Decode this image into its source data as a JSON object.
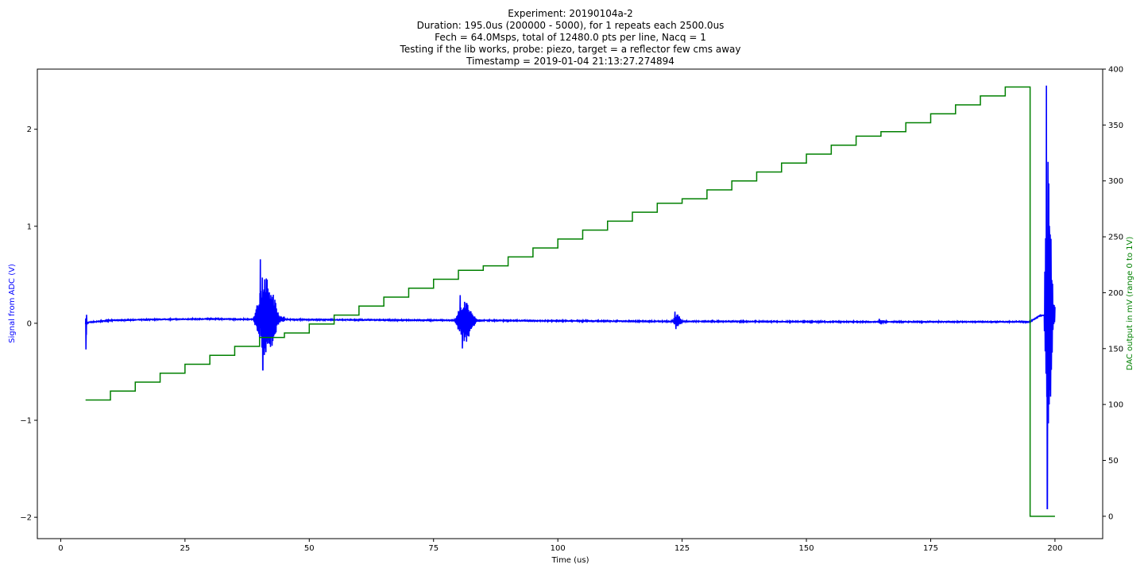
{
  "chart_data": {
    "type": "line",
    "title_lines": [
      "Experiment: 20190104a-2",
      "Duration: 195.0us (200000 - 5000), for 1 repeats each 2500.0us",
      "Fech = 64.0Msps, total of 12480.0 pts per line, Nacq = 1",
      "Testing if the lib works, probe: piezo, target = a reflector few cms away",
      "Timestamp = 2019-01-04 21:13:27.274894"
    ],
    "xlabel": "Time (us)",
    "ylabel_left": "Signal from ADC (V)",
    "ylabel_right": "DAC output in mV (range 0 to 1V)",
    "xlim": [
      -4.7,
      209.6
    ],
    "ylim_left": [
      -2.22,
      2.62
    ],
    "ylim_right": [
      -20,
      400
    ],
    "x_ticks": [
      0,
      25,
      50,
      75,
      100,
      125,
      150,
      175,
      200
    ],
    "x_tick_labels": [
      "0",
      "25",
      "50",
      "75",
      "100",
      "125",
      "150",
      "175",
      "200"
    ],
    "y_left_ticks": [
      -2,
      -1,
      0,
      1,
      2
    ],
    "y_left_tick_labels": [
      "−2",
      "−1",
      "0",
      "1",
      "2"
    ],
    "y_right_ticks": [
      0,
      50,
      100,
      150,
      200,
      250,
      300,
      350,
      400
    ],
    "y_right_tick_labels": [
      "0",
      "50",
      "100",
      "150",
      "200",
      "250",
      "300",
      "350",
      "400"
    ],
    "grid": false,
    "colors": {
      "signal": "#0000ff",
      "dac": "#008000",
      "left_label": "#0000ff",
      "right_label": "#008000"
    },
    "series": [
      {
        "axis": "right",
        "color": "#008000",
        "step_x": [
          5,
          10,
          15,
          20,
          25,
          30,
          35,
          40,
          45,
          50,
          55,
          60,
          65,
          70,
          75,
          80,
          85,
          90,
          95,
          100,
          105,
          110,
          115,
          120,
          125,
          130,
          135,
          140,
          145,
          150,
          155,
          160,
          165,
          170,
          175,
          180,
          185,
          190,
          195,
          200
        ],
        "step_y": [
          104,
          112,
          120,
          128,
          136,
          144,
          152,
          160,
          164,
          172,
          180,
          188,
          196,
          204,
          212,
          220,
          224,
          232,
          240,
          248,
          256,
          264,
          272,
          280,
          284,
          292,
          300,
          308,
          316,
          324,
          332,
          340,
          344,
          352,
          360,
          368,
          376,
          384,
          0,
          0
        ]
      },
      {
        "axis": "left",
        "color": "#0000ff",
        "baseline": [
          [
            5,
            0.0
          ],
          [
            5.8,
            0.01
          ],
          [
            10,
            0.03
          ],
          [
            20,
            0.04
          ],
          [
            30,
            0.045
          ],
          [
            40,
            0.04
          ],
          [
            60,
            0.035
          ],
          [
            80,
            0.03
          ],
          [
            100,
            0.025
          ],
          [
            120,
            0.02
          ],
          [
            140,
            0.018
          ],
          [
            160,
            0.015
          ],
          [
            180,
            0.015
          ],
          [
            195,
            0.015
          ],
          [
            197,
            0.08
          ],
          [
            198,
            0.08
          ]
        ],
        "bursts": [
          {
            "x0": 5.0,
            "x1": 5.3,
            "vmax": 0.41,
            "vmin": -0.27
          },
          {
            "x0": 38.8,
            "x1": 45.0,
            "vmax": 0.66,
            "vmin": -0.48
          },
          {
            "x0": 79.2,
            "x1": 84.5,
            "vmax": 0.29,
            "vmin": -0.26
          },
          {
            "x0": 123.0,
            "x1": 125.5,
            "vmax": 0.12,
            "vmin": -0.06
          },
          {
            "x0": 164.0,
            "x1": 167.0,
            "vmax": 0.04,
            "vmin": 0.0
          },
          {
            "x0": 197.8,
            "x1": 200.0,
            "vmax": 2.45,
            "vmin": -1.91
          }
        ]
      }
    ]
  }
}
